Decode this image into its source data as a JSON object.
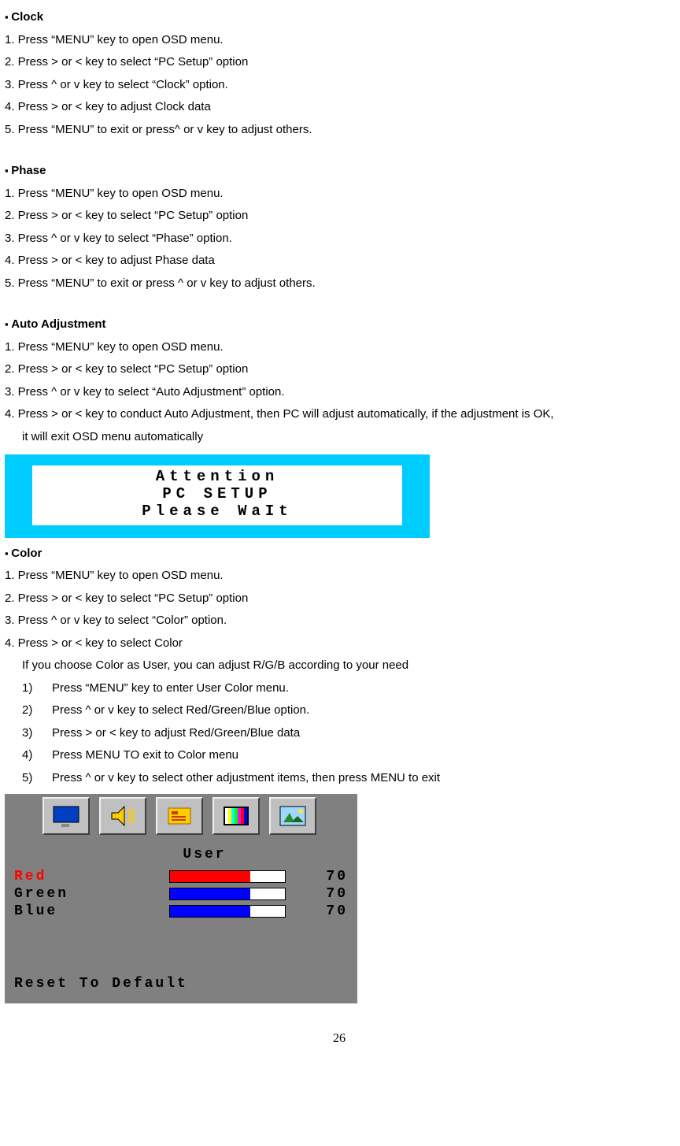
{
  "clock": {
    "title": "Clock",
    "s1": "1. Press “MENU” key to open OSD menu.",
    "s2": "2. Press > or < key to select “PC Setup” option",
    "s3": "3. Press ^ or v key to select “Clock” option.",
    "s4": "4. Press > or < key to adjust Clock data",
    "s5": "5. Press “MENU” to exit or press^ or v key to adjust others."
  },
  "phase": {
    "title": "Phase",
    "s1": "1. Press “MENU” key to open OSD menu.",
    "s2": "2. Press > or < key to select “PC Setup” option",
    "s3": "3. Press ^ or v key to select “Phase” option.",
    "s4": "4. Press > or < key to adjust Phase data",
    "s5": "5. Press “MENU” to exit or press ^ or v key to adjust others."
  },
  "auto": {
    "title": "Auto Adjustment",
    "s1": "1. Press “MENU” key to open OSD menu.",
    "s2": "2. Press > or < key to select “PC Setup” option",
    "s3": "3. Press ^ or v key to select “Auto Adjustment” option.",
    "s4": "4. Press > or < key to conduct Auto Adjustment, then PC will adjust automatically, if the adjustment is OK,",
    "s4b": "it will exit OSD menu automatically"
  },
  "attention": {
    "l1": "Attention",
    "l2": "PC  SETUP",
    "l3": "Please  WaIt"
  },
  "color": {
    "title": "Color",
    "s1": "1. Press “MENU” key to open OSD menu.",
    "s2": "2. Press > or < key to select “PC Setup” option",
    "s3": "3. Press ^ or v key to select “Color” option.",
    "s4": "4. Press > or < key to select Color",
    "note": "If you choose Color as User, you can adjust R/G/B according to your need",
    "sub1": "Press “MENU” key to enter User Color menu.",
    "sub2": "Press ^ or v key to select Red/Green/Blue option.",
    "sub3": "Press > or < key to adjust Red/Green/Blue data",
    "sub4": "Press MENU TO exit to Color menu",
    "sub5": "Press ^ or v key to select other adjustment items, then press MENU to exit"
  },
  "osd": {
    "mode": "User",
    "rows": [
      {
        "label": "Red",
        "value": "70",
        "label_color": "#ff0000",
        "fill_color": "#ff0000",
        "fill_pct": 70
      },
      {
        "label": "Green",
        "value": "70",
        "label_color": "#000000",
        "fill_color": "#0000ff",
        "fill_pct": 70
      },
      {
        "label": "Blue",
        "value": "70",
        "label_color": "#000000",
        "fill_color": "#0000ff",
        "fill_pct": 70
      }
    ],
    "reset": "Reset  To  Default"
  },
  "page": "26"
}
